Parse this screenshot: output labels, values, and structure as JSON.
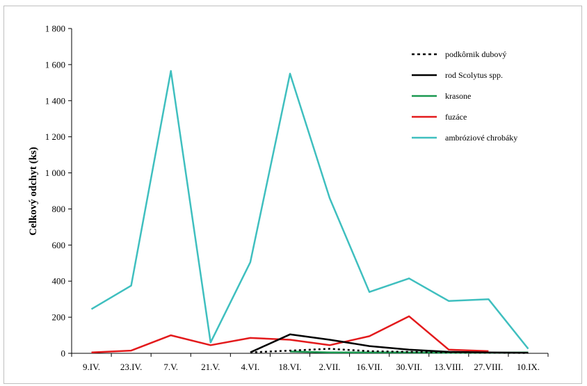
{
  "chart_data": {
    "type": "line",
    "title": "",
    "xlabel": "",
    "ylabel": "Celkový odchyt (ks)",
    "ylim": [
      0,
      1800
    ],
    "yticks": [
      0,
      200,
      400,
      600,
      800,
      1000,
      1200,
      1400,
      1600,
      1800
    ],
    "ytick_labels": [
      "0",
      "200",
      "400",
      "600",
      "800",
      "1 000",
      "1 200",
      "1 400",
      "1 600",
      "1 800"
    ],
    "categories": [
      "9.IV.",
      "23.IV.",
      "7.V.",
      "21.V.",
      "4.VI.",
      "18.VI.",
      "2.VII.",
      "16.VII.",
      "30.VII.",
      "13.VIII.",
      "27.VIII.",
      "10.IX."
    ],
    "grid": false,
    "legend_position": "top-right",
    "series": [
      {
        "name": "podkôrnik dubový",
        "color": "#000000",
        "dash": "dotted",
        "values": [
          null,
          null,
          null,
          null,
          5,
          15,
          25,
          12,
          8,
          5,
          3,
          2
        ]
      },
      {
        "name": "rod Scolytus spp.",
        "color": "#000000",
        "dash": "solid",
        "values": [
          null,
          null,
          null,
          null,
          5,
          105,
          75,
          40,
          20,
          8,
          5,
          3
        ]
      },
      {
        "name": "krasone",
        "color": "#1a9850",
        "dash": "solid",
        "values": [
          null,
          null,
          null,
          null,
          null,
          10,
          5,
          5,
          5,
          3,
          3,
          5
        ]
      },
      {
        "name": "fuzáce",
        "color": "#e31a1c",
        "dash": "solid",
        "values": [
          5,
          15,
          100,
          45,
          85,
          75,
          45,
          95,
          205,
          20,
          12,
          null
        ]
      },
      {
        "name": "ambróziové chrobáky",
        "color": "#3fbfbf",
        "dash": "solid",
        "values": [
          245,
          375,
          1565,
          60,
          505,
          1550,
          860,
          340,
          415,
          290,
          300,
          25
        ]
      }
    ]
  }
}
